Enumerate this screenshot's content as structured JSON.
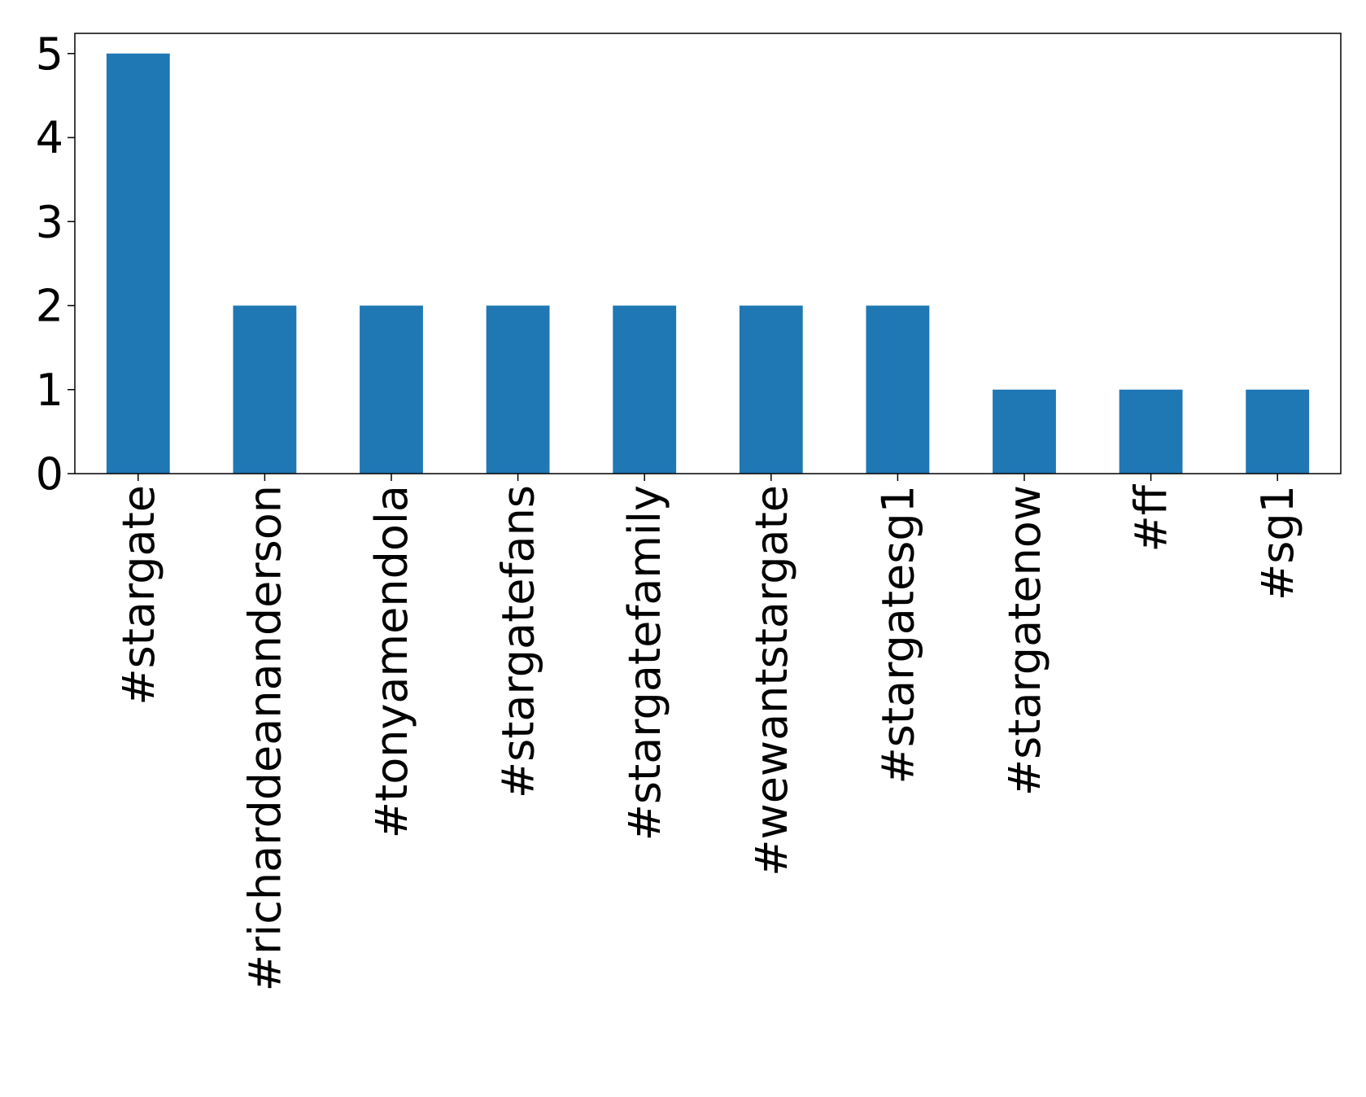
{
  "chart_data": {
    "type": "bar",
    "categories": [
      "#stargate",
      "#richarddeananderson",
      "#tonyamendola",
      "#stargatefans",
      "#stargatefamily",
      "#wewantstargate",
      "#stargatesg1",
      "#stargatenow",
      "#ff",
      "#sg1"
    ],
    "values": [
      5,
      2,
      2,
      2,
      2,
      2,
      2,
      1,
      1,
      1
    ],
    "color": "#1f77b4",
    "ylim": [
      0,
      5.24
    ],
    "yticks": [
      0,
      1,
      2,
      3,
      4,
      5
    ],
    "grid": false
  }
}
